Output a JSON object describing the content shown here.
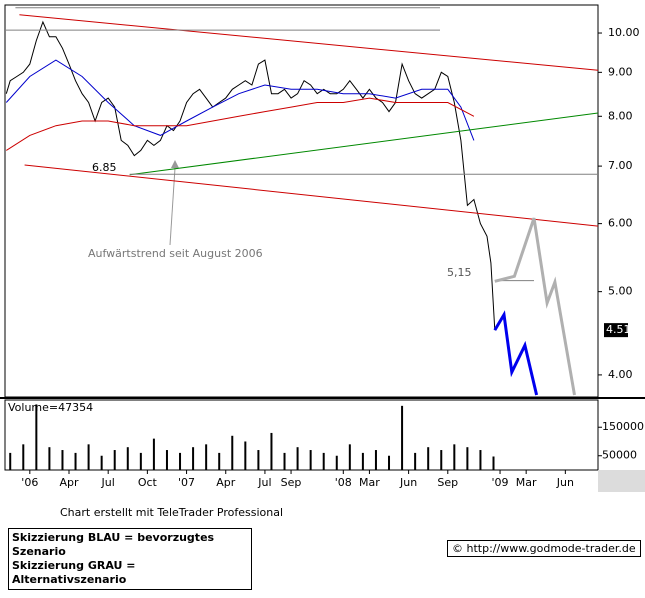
{
  "chart_data": [
    {
      "type": "line",
      "log_scale": true,
      "ylim": [
        3.77,
        10.78
      ],
      "yticks": [
        {
          "value": 4,
          "label": "4.00"
        },
        {
          "value": 5,
          "label": "5.00"
        },
        {
          "value": 6,
          "label": "6.00"
        },
        {
          "value": 7,
          "label": "7.00"
        },
        {
          "value": 8,
          "label": "8.00"
        },
        {
          "value": 9,
          "label": "9.00"
        },
        {
          "value": 10,
          "label": "10.00"
        }
      ],
      "xlim": [
        -1.9,
        43.5
      ],
      "current_value": 4.51,
      "annotations": [
        "6.85",
        "5,15",
        "Aufwärtstrend seit August 2006"
      ],
      "series": [
        {
          "color": "#000000",
          "x": [
            -1.8,
            -1.5,
            -1,
            -0.5,
            0,
            0.5,
            1,
            1.5,
            2,
            2.5,
            3,
            3.5,
            4,
            4.5,
            5,
            5.5,
            6,
            6.5,
            7,
            7.5,
            8,
            8.5,
            9,
            9.5,
            10,
            10.5,
            11,
            11.5,
            12,
            12.5,
            13,
            13.5,
            14,
            14.5,
            15,
            15.5,
            16,
            16.5,
            17,
            17.5,
            18,
            18.5,
            19,
            19.5,
            20,
            20.5,
            21,
            21.5,
            22,
            22.5,
            23,
            23.5,
            24,
            24.5,
            25,
            25.5,
            26,
            26.5,
            27,
            27.5,
            28,
            28.5,
            29,
            29.5,
            30,
            30.5,
            31,
            31.5,
            32,
            32.5,
            33,
            33.5,
            34,
            34.5,
            35,
            35.3,
            35.6
          ],
          "values": [
            8.5,
            8.8,
            8.9,
            9.0,
            9.2,
            9.8,
            10.3,
            9.9,
            9.9,
            9.6,
            9.2,
            8.8,
            8.5,
            8.3,
            7.9,
            8.3,
            8.4,
            8.2,
            7.5,
            7.4,
            7.2,
            7.3,
            7.5,
            7.4,
            7.5,
            7.8,
            7.7,
            7.9,
            8.3,
            8.5,
            8.6,
            8.4,
            8.2,
            8.3,
            8.4,
            8.6,
            8.7,
            8.8,
            8.7,
            9.2,
            9.3,
            8.5,
            8.5,
            8.6,
            8.4,
            8.5,
            8.8,
            8.7,
            8.5,
            8.6,
            8.5,
            8.5,
            8.6,
            8.8,
            8.6,
            8.4,
            8.6,
            8.4,
            8.3,
            8.1,
            8.3,
            9.2,
            8.8,
            8.5,
            8.4,
            8.5,
            8.6,
            9.0,
            8.9,
            8.3,
            7.5,
            6.3,
            6.4,
            6.0,
            5.8,
            5.4,
            4.51
          ]
        },
        {
          "color": "#0000cc",
          "x": [
            -1.8,
            0,
            2,
            4,
            6,
            8,
            10,
            12,
            14,
            16,
            18,
            20,
            22,
            24,
            26,
            28,
            30,
            32,
            33,
            34
          ],
          "values": [
            8.3,
            8.9,
            9.3,
            8.9,
            8.3,
            7.8,
            7.6,
            7.9,
            8.2,
            8.5,
            8.7,
            8.6,
            8.6,
            8.5,
            8.5,
            8.4,
            8.6,
            8.6,
            8.2,
            7.5
          ]
        },
        {
          "color": "#cc0000",
          "x": [
            -1.8,
            0,
            2,
            4,
            6,
            8,
            10,
            12,
            14,
            16,
            18,
            20,
            22,
            24,
            26,
            28,
            30,
            32,
            34
          ],
          "values": [
            7.3,
            7.6,
            7.8,
            7.9,
            7.9,
            7.8,
            7.8,
            7.8,
            7.9,
            8.0,
            8.1,
            8.2,
            8.3,
            8.3,
            8.4,
            8.3,
            8.3,
            8.3,
            8.0
          ]
        },
        {
          "color": "#cc0000",
          "x": [
            -0.8,
            43.5
          ],
          "values": [
            10.5,
            9.05
          ]
        },
        {
          "color": "#cc0000",
          "x": [
            -0.4,
            43.5
          ],
          "values": [
            7.02,
            5.96
          ]
        },
        {
          "color": "#008800",
          "x": [
            7.65,
            43.5
          ],
          "values": [
            6.84,
            8.07
          ]
        },
        {
          "color": "#808080",
          "x": [
            -1.1,
            31.4
          ],
          "values": [
            10.7,
            10.7
          ]
        },
        {
          "color": "#808080",
          "x": [
            -1.9,
            31.4
          ],
          "values": [
            10.08,
            10.08
          ]
        },
        {
          "color": "#808080",
          "x": [
            7.65,
            43.5
          ],
          "values": [
            6.85,
            6.85
          ]
        },
        {
          "color": "#808080",
          "x": [
            35.6,
            38.6
          ],
          "values": [
            5.15,
            5.15
          ]
        },
        {
          "color": "#0000ee",
          "width": 3,
          "x": [
            35.6,
            36.3,
            36.9,
            37.9,
            38.8
          ],
          "values": [
            4.51,
            4.7,
            4.03,
            4.33,
            3.79
          ]
        },
        {
          "color": "#b0b0b0",
          "width": 3,
          "x": [
            35.6,
            37.1,
            38.6,
            39.6,
            40.2,
            41.7
          ],
          "values": [
            5.14,
            5.21,
            6.09,
            4.85,
            5.13,
            3.79
          ]
        }
      ]
    },
    {
      "type": "bar",
      "title": "Volume=47354",
      "color": "#000000",
      "ylim": [
        0,
        235000
      ],
      "yticks": [
        50000,
        150000
      ],
      "xlim": [
        -1.9,
        43.5
      ],
      "x": [
        -1.5,
        -0.5,
        0.5,
        1.5,
        2.5,
        3.5,
        4.5,
        5.5,
        6.5,
        7.5,
        8.5,
        9.5,
        10.5,
        11.5,
        12.5,
        13.5,
        14.5,
        15.5,
        16.5,
        17.5,
        18.5,
        19.5,
        20.5,
        21.5,
        22.5,
        23.5,
        24.5,
        25.5,
        26.5,
        27.5,
        28.5,
        29.5,
        30.5,
        31.5,
        32.5,
        33.5,
        34.5,
        35.5
      ],
      "values": [
        60000,
        90000,
        230000,
        80000,
        70000,
        60000,
        90000,
        50000,
        70000,
        80000,
        60000,
        110000,
        70000,
        60000,
        80000,
        90000,
        60000,
        120000,
        100000,
        70000,
        130000,
        60000,
        80000,
        70000,
        60000,
        50000,
        90000,
        60000,
        70000,
        50000,
        225000,
        60000,
        80000,
        70000,
        90000,
        80000,
        70000,
        47354
      ],
      "xticks": [
        {
          "value": 0,
          "label": "'06"
        },
        {
          "value": 3,
          "label": "Apr"
        },
        {
          "value": 6,
          "label": "Jul"
        },
        {
          "value": 9,
          "label": "Oct"
        },
        {
          "value": 12,
          "label": "'07"
        },
        {
          "value": 15,
          "label": "Apr"
        },
        {
          "value": 18,
          "label": "Jul"
        },
        {
          "value": 20,
          "label": "Sep"
        },
        {
          "value": 24,
          "label": "'08"
        },
        {
          "value": 26,
          "label": "Mar"
        },
        {
          "value": 29,
          "label": "Jun"
        },
        {
          "value": 32,
          "label": "Sep"
        },
        {
          "value": 36,
          "label": "'09"
        },
        {
          "value": 38,
          "label": "Mar"
        },
        {
          "value": 41,
          "label": "Jun"
        }
      ]
    }
  ],
  "footer": {
    "credit": "Chart erstellt mit TeleTrader Professional",
    "legend_lines": [
      "Skizzierung BLAU = bevorzugtes Szenario",
      "Skizzierung GRAU = Alternativszenario"
    ],
    "source": "© http://www.godmode-trader.de"
  }
}
